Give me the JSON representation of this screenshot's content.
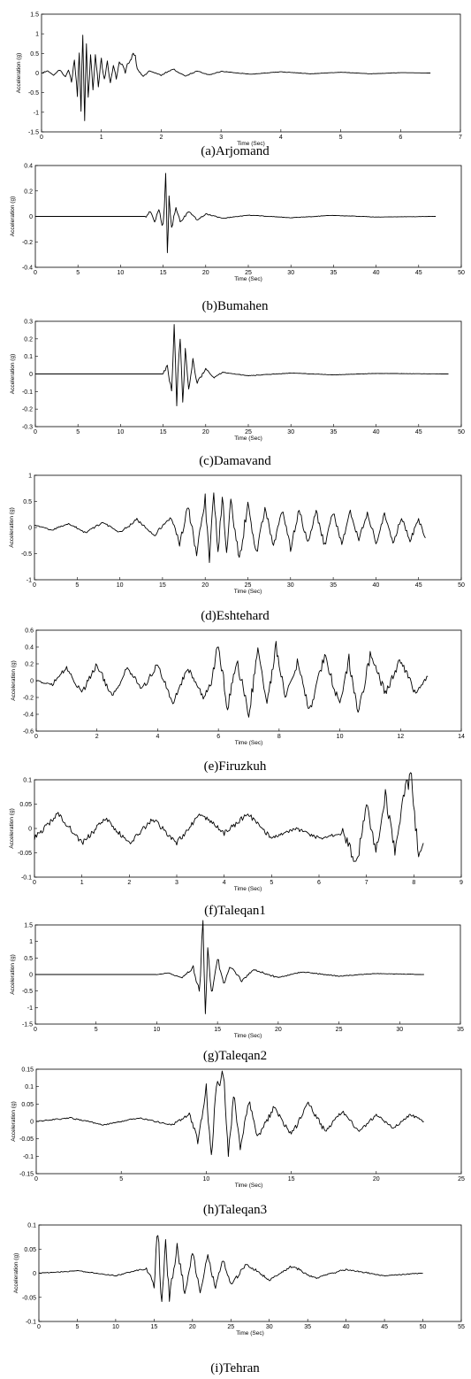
{
  "chart_data": [
    {
      "type": "line",
      "caption": "(a)Arjomand",
      "xlabel": "Time (Sec)",
      "ylabel": "Acceleration (g)",
      "xlim": [
        0,
        7
      ],
      "ylim": [
        -1.5,
        1.5
      ],
      "x_ticks": [
        "0",
        "1",
        "2",
        "3",
        "4",
        "5",
        "6",
        "7"
      ],
      "y_ticks": [
        "1.5",
        "1",
        "0.5",
        "0",
        "-0.5",
        "-1",
        "-1.5"
      ],
      "series": [
        {
          "x": [
            0.0,
            0.1,
            0.2,
            0.3,
            0.4,
            0.45,
            0.5,
            0.55,
            0.6,
            0.63,
            0.66,
            0.69,
            0.72,
            0.75,
            0.78,
            0.82,
            0.86,
            0.9,
            0.95,
            1.0,
            1.05,
            1.1,
            1.15,
            1.2,
            1.25,
            1.3,
            1.4,
            1.5,
            1.55,
            1.6,
            1.7,
            1.8,
            2.0,
            2.2,
            2.4,
            2.6,
            2.8,
            3.0,
            3.5,
            4.0,
            4.5,
            5.0,
            5.5,
            6.0,
            6.5
          ],
          "y": [
            0.0,
            0.05,
            -0.05,
            0.08,
            -0.1,
            0.1,
            -0.2,
            0.3,
            -0.5,
            0.6,
            -1.0,
            1.1,
            -1.2,
            0.8,
            -0.6,
            0.5,
            -0.4,
            0.45,
            -0.3,
            0.35,
            -0.2,
            0.3,
            -0.25,
            0.2,
            -0.15,
            0.3,
            0.05,
            0.4,
            0.5,
            0.1,
            -0.1,
            0.05,
            -0.05,
            0.1,
            -0.08,
            0.05,
            -0.05,
            0.04,
            -0.03,
            0.03,
            -0.02,
            0.02,
            -0.02,
            0.01,
            0.0
          ]
        }
      ]
    },
    {
      "type": "line",
      "caption": "(b)Bumahen",
      "xlabel": "Time (Sec)",
      "ylabel": "Acceleration (g)",
      "xlim": [
        0,
        50
      ],
      "ylim": [
        -0.4,
        0.4
      ],
      "x_ticks": [
        "0",
        "5",
        "10",
        "15",
        "20",
        "25",
        "30",
        "35",
        "40",
        "45",
        "50"
      ],
      "y_ticks": [
        "0.4",
        "0.2",
        "0",
        "-0.2",
        "-0.4"
      ],
      "series": [
        {
          "x": [
            0,
            13.0,
            13.5,
            14.0,
            14.5,
            15.0,
            15.3,
            15.5,
            15.7,
            16.0,
            16.5,
            17.0,
            18.0,
            19.0,
            20.0,
            22.0,
            25.0,
            30.0,
            35.0,
            40.0,
            47.0
          ],
          "y": [
            0.0,
            0.0,
            0.04,
            -0.04,
            0.05,
            -0.1,
            0.35,
            -0.27,
            0.15,
            -0.1,
            0.08,
            -0.05,
            0.04,
            -0.03,
            0.02,
            -0.015,
            0.01,
            -0.01,
            0.008,
            -0.005,
            0.0
          ]
        }
      ]
    },
    {
      "type": "line",
      "caption": "(c)Damavand",
      "xlabel": "Time (Sec)",
      "ylabel": "Acceleration (g)",
      "xlim": [
        0,
        50
      ],
      "ylim": [
        -0.3,
        0.3
      ],
      "x_ticks": [
        "0",
        "5",
        "10",
        "15",
        "20",
        "25",
        "30",
        "35",
        "40",
        "45",
        "50"
      ],
      "y_ticks": [
        "0.3",
        "0.2",
        "0.1",
        "0",
        "-0.1",
        "-0.2",
        "-0.3"
      ],
      "series": [
        {
          "x": [
            0,
            15.0,
            15.5,
            16.0,
            16.3,
            16.6,
            17.0,
            17.3,
            17.6,
            18.0,
            18.5,
            19.0,
            20.0,
            21.0,
            22.0,
            25.0,
            30.0,
            35.0,
            40.0,
            48.5
          ],
          "y": [
            0.0,
            0.0,
            0.05,
            -0.1,
            0.25,
            -0.15,
            0.22,
            -0.19,
            0.15,
            -0.1,
            0.08,
            -0.05,
            0.03,
            -0.02,
            0.01,
            -0.01,
            0.005,
            -0.005,
            0.003,
            0.0
          ]
        }
      ]
    },
    {
      "type": "line",
      "caption": "(d)Eshtehard",
      "xlabel": "Time (Sec)",
      "ylabel": "Acceleration (g)",
      "xlim": [
        0,
        50
      ],
      "ylim": [
        -1,
        1
      ],
      "x_ticks": [
        "0",
        "5",
        "10",
        "15",
        "20",
        "25",
        "30",
        "35",
        "40",
        "45",
        "50"
      ],
      "y_ticks": [
        "1",
        "0.5",
        "0",
        "-0.5",
        "-1"
      ],
      "series": [
        {
          "x": [
            0,
            2,
            4,
            6,
            8,
            10,
            12,
            14,
            16,
            17,
            18,
            19,
            20,
            20.5,
            21,
            21.5,
            22,
            22.5,
            23,
            24,
            25,
            26,
            27,
            28,
            29,
            30,
            31,
            32,
            33,
            34,
            35,
            36,
            37,
            38,
            39,
            40,
            41,
            42,
            43,
            44,
            45,
            45.8
          ],
          "y": [
            0.05,
            -0.05,
            0.08,
            -0.1,
            0.1,
            -0.1,
            0.15,
            -0.15,
            0.2,
            -0.3,
            0.4,
            -0.5,
            0.55,
            -0.7,
            0.65,
            -0.55,
            0.6,
            -0.45,
            0.5,
            -0.6,
            0.45,
            -0.5,
            0.4,
            -0.35,
            0.35,
            -0.4,
            0.35,
            -0.3,
            0.3,
            -0.35,
            0.3,
            -0.3,
            0.3,
            -0.25,
            0.3,
            -0.3,
            0.25,
            -0.3,
            0.2,
            -0.25,
            0.15,
            -0.2
          ]
        }
      ]
    },
    {
      "type": "line",
      "caption": "(e)Firuzkuh",
      "xlabel": "Time (Sec)",
      "ylabel": "Acceleration (g)",
      "xlim": [
        0,
        14
      ],
      "ylim": [
        -0.6,
        0.6
      ],
      "x_ticks": [
        "0",
        "2",
        "4",
        "6",
        "8",
        "10",
        "12",
        "14"
      ],
      "y_ticks": [
        "0.6",
        "0.4",
        "0.2",
        "0",
        "-0.2",
        "-0.4",
        "-0.6"
      ],
      "series": [
        {
          "x": [
            0,
            0.5,
            1,
            1.5,
            2,
            2.5,
            3,
            3.5,
            4,
            4.5,
            5,
            5.5,
            5.8,
            6.0,
            6.3,
            6.6,
            7.0,
            7.3,
            7.6,
            7.9,
            8.2,
            8.6,
            9.0,
            9.5,
            10.0,
            10.3,
            10.6,
            11.0,
            11.5,
            12.0,
            12.5,
            12.9
          ],
          "y": [
            0.0,
            -0.05,
            0.15,
            -0.15,
            0.2,
            -0.2,
            0.15,
            -0.1,
            0.2,
            -0.25,
            0.15,
            -0.2,
            0.0,
            0.45,
            -0.35,
            0.25,
            -0.42,
            0.38,
            -0.3,
            0.4,
            -0.2,
            0.2,
            -0.35,
            0.3,
            -0.3,
            0.25,
            -0.43,
            0.3,
            -0.15,
            0.25,
            -0.15,
            0.05
          ]
        }
      ]
    },
    {
      "type": "line",
      "caption": "(f)Taleqan1",
      "xlabel": "Time (Sec)",
      "ylabel": "Acceleration (g)",
      "xlim": [
        0,
        9
      ],
      "ylim": [
        -0.1,
        0.1
      ],
      "x_ticks": [
        "0",
        "1",
        "2",
        "3",
        "4",
        "5",
        "6",
        "7",
        "8",
        "9"
      ],
      "y_ticks": [
        "0.1",
        "0.05",
        "0",
        "-0.05",
        "-0.1"
      ],
      "series": [
        {
          "x": [
            0,
            0.5,
            1.0,
            1.5,
            2.0,
            2.5,
            3.0,
            3.5,
            4.0,
            4.5,
            5.0,
            5.5,
            6.0,
            6.5,
            6.8,
            7.0,
            7.2,
            7.4,
            7.6,
            7.8,
            7.95,
            8.1,
            8.2
          ],
          "y": [
            -0.02,
            0.03,
            -0.03,
            0.02,
            -0.03,
            0.02,
            -0.03,
            0.03,
            -0.01,
            0.03,
            -0.02,
            0.0,
            -0.02,
            -0.01,
            -0.07,
            0.05,
            -0.05,
            0.07,
            -0.05,
            0.08,
            0.1,
            -0.06,
            -0.03
          ]
        }
      ]
    },
    {
      "type": "line",
      "caption": "(g)Taleqan2",
      "xlabel": "Time (Sec)",
      "ylabel": "Acceleration (g)",
      "xlim": [
        0,
        35
      ],
      "ylim": [
        -1.5,
        1.5
      ],
      "x_ticks": [
        "0",
        "5",
        "10",
        "15",
        "20",
        "25",
        "30",
        "35"
      ],
      "y_ticks": [
        "1.5",
        "1",
        "0.5",
        "0",
        "-0.5",
        "-1",
        "-1.5"
      ],
      "series": [
        {
          "x": [
            0,
            10.0,
            11.0,
            12.0,
            13.0,
            13.5,
            13.8,
            14.0,
            14.2,
            14.5,
            15.0,
            15.5,
            16.0,
            17.0,
            18.0,
            20.0,
            22.0,
            25.0,
            28.0,
            32.0
          ],
          "y": [
            0.0,
            0.0,
            0.05,
            -0.1,
            0.2,
            -0.5,
            1.5,
            -1.05,
            0.9,
            -0.6,
            0.5,
            -0.3,
            0.25,
            -0.2,
            0.15,
            -0.1,
            0.08,
            -0.05,
            0.03,
            0.0
          ]
        }
      ]
    },
    {
      "type": "line",
      "caption": "(h)Taleqan3",
      "xlabel": "Time (Sec)",
      "ylabel": "Acceleration (g)",
      "xlim": [
        0,
        25
      ],
      "ylim": [
        -0.15,
        0.15
      ],
      "x_ticks": [
        "0",
        "5",
        "10",
        "15",
        "20",
        "25"
      ],
      "y_ticks": [
        "0.15",
        "0.1",
        "0.05",
        "0",
        "-0.05",
        "-0.1",
        "-0.15"
      ],
      "series": [
        {
          "x": [
            0,
            2,
            4,
            6,
            8,
            9,
            9.5,
            10.0,
            10.3,
            10.6,
            11.0,
            11.3,
            11.6,
            12.0,
            12.5,
            13.0,
            14.0,
            15.0,
            16.0,
            17.0,
            18.0,
            19.0,
            20.0,
            21.0,
            22.0,
            22.8
          ],
          "y": [
            0.0,
            0.01,
            -0.01,
            0.01,
            -0.01,
            0.02,
            -0.05,
            0.1,
            -0.11,
            0.1,
            0.15,
            -0.11,
            0.08,
            -0.07,
            0.06,
            -0.05,
            0.04,
            -0.04,
            0.05,
            -0.03,
            0.03,
            -0.03,
            0.02,
            -0.02,
            0.02,
            0.0
          ]
        }
      ]
    },
    {
      "type": "line",
      "caption": "(i)Tehran",
      "xlabel": "Time (Sec)",
      "ylabel": "Acceleration (g)",
      "xlim": [
        0,
        55
      ],
      "ylim": [
        -0.1,
        0.1
      ],
      "x_ticks": [
        "0",
        "5",
        "10",
        "15",
        "20",
        "25",
        "30",
        "35",
        "40",
        "45",
        "50",
        "55"
      ],
      "y_ticks": [
        "0.1",
        "0.05",
        "0",
        "-0.05",
        "-0.1"
      ],
      "series": [
        {
          "x": [
            0,
            5,
            10,
            14,
            15,
            15.5,
            16.0,
            16.5,
            17.0,
            18.0,
            19.0,
            20.0,
            21.0,
            22.0,
            23.0,
            24.0,
            25.0,
            27.0,
            30.0,
            33.0,
            36.0,
            40.0,
            45.0,
            50.0
          ],
          "y": [
            0.0,
            0.005,
            -0.005,
            0.01,
            -0.02,
            0.09,
            -0.065,
            0.06,
            -0.05,
            0.055,
            -0.04,
            0.04,
            -0.035,
            0.035,
            -0.03,
            0.03,
            -0.025,
            0.02,
            -0.015,
            0.015,
            -0.01,
            0.008,
            -0.005,
            0.0
          ]
        }
      ]
    }
  ]
}
